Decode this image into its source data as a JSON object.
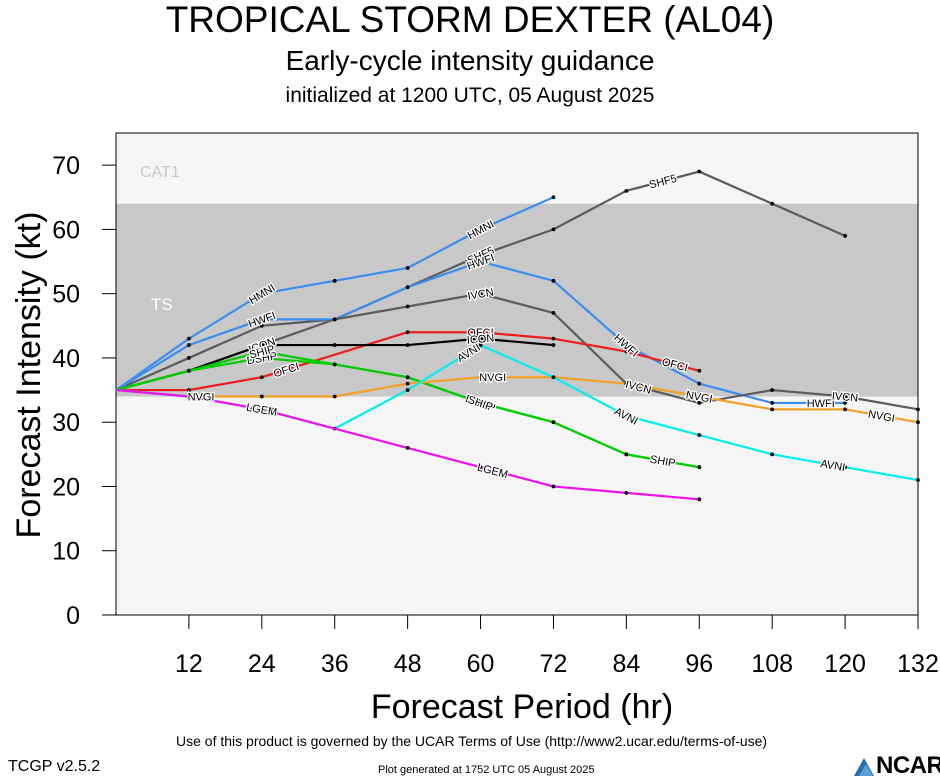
{
  "titles": {
    "main": "TROPICAL STORM DEXTER (AL04)",
    "subtitle": "Early-cycle intensity guidance",
    "init": "initialized at 1200 UTC, 05 August 2025"
  },
  "footer": {
    "terms": "Use of this product is governed by the UCAR Terms of Use (http://www2.ucar.edu/terms-of-use)",
    "version": "TCGP v2.5.2",
    "generated": "Plot generated at 1752 UTC   05 August 2025",
    "logo": "NCAR"
  },
  "chart_data": {
    "type": "line",
    "xlabel": "Forecast Period (hr)",
    "ylabel": "Forecast Intensity (kt)",
    "xlim": [
      0,
      132
    ],
    "ylim": [
      0,
      75
    ],
    "xticks": [
      12,
      24,
      36,
      48,
      60,
      72,
      84,
      96,
      108,
      120,
      132
    ],
    "yticks": [
      0,
      10,
      20,
      30,
      40,
      50,
      60,
      70
    ],
    "bands": [
      {
        "label": "CAT1",
        "from": 64,
        "to": 75,
        "color": "#f5f5f5"
      },
      {
        "label": "TS",
        "from": 34,
        "to": 64,
        "color": "#c8c8c8"
      },
      {
        "label": "",
        "from": 0,
        "to": 34,
        "color": "#f5f5f5"
      }
    ],
    "series": [
      {
        "name": "HMNI",
        "color": "#3a8ef0",
        "x": [
          0,
          12,
          24,
          36,
          48,
          60,
          72
        ],
        "y": [
          35,
          43,
          50,
          52,
          54,
          60,
          65
        ],
        "labels_at": [
          24,
          60
        ]
      },
      {
        "name": "SHF5",
        "color": "#5c5c5c",
        "x": [
          0,
          12,
          24,
          36,
          48,
          60,
          72,
          84,
          96,
          108,
          120
        ],
        "y": [
          35,
          40,
          45,
          46,
          51,
          56,
          60,
          66,
          69,
          64,
          59
        ],
        "labels_at": [
          60,
          90
        ]
      },
      {
        "name": "HWFI",
        "color": "#3a8ef0",
        "x": [
          0,
          12,
          24,
          36,
          48,
          60,
          72,
          84,
          96,
          108,
          120
        ],
        "y": [
          35,
          42,
          46,
          46,
          51,
          55,
          52,
          42,
          36,
          33,
          33
        ],
        "labels_at": [
          24,
          60,
          84,
          116
        ]
      },
      {
        "name": "IVCN",
        "color": "#5c5c5c",
        "x": [
          0,
          12,
          24,
          36,
          48,
          60,
          72,
          84,
          96,
          108,
          120,
          132
        ],
        "y": [
          35,
          38,
          42,
          46,
          48,
          50,
          47,
          36,
          33,
          35,
          34,
          32
        ],
        "labels_at": [
          24,
          60,
          86,
          120
        ]
      },
      {
        "name": "OFCI",
        "color": "#ee1c1c",
        "x": [
          0,
          12,
          24,
          48,
          60,
          72,
          84,
          96
        ],
        "y": [
          35,
          35,
          37,
          44,
          44,
          43,
          41,
          38
        ],
        "labels_at": [
          28,
          60,
          92
        ]
      },
      {
        "name": "ICON",
        "color": "#000000",
        "x": [
          0,
          12,
          24,
          36,
          48,
          60,
          72
        ],
        "y": [
          35,
          38,
          42,
          42,
          42,
          43,
          42
        ],
        "labels_at": [
          24,
          60
        ]
      },
      {
        "name": "DSHP",
        "color": "#00cc00",
        "x": [
          0,
          12,
          24,
          36,
          48,
          60,
          72,
          84,
          96
        ],
        "y": [
          35,
          38,
          40,
          39,
          37,
          33,
          30,
          25,
          23
        ],
        "labels_at": [
          24,
          60
        ]
      },
      {
        "name": "SHIP",
        "color": "#00cc00",
        "x": [
          0,
          12,
          24,
          36,
          48,
          60,
          72,
          84,
          96
        ],
        "y": [
          35,
          38,
          41,
          39,
          37,
          33,
          30,
          25,
          23
        ],
        "labels_at": [
          24,
          60,
          90
        ]
      },
      {
        "name": "NVGI",
        "color": "#f4a020",
        "x": [
          0,
          12,
          24,
          36,
          48,
          60,
          72,
          84,
          96,
          108,
          120,
          132
        ],
        "y": [
          35,
          34,
          34,
          34,
          36,
          37,
          37,
          36,
          34,
          32,
          32,
          30
        ],
        "labels_at": [
          14,
          62,
          96,
          126
        ]
      },
      {
        "name": "AVNI",
        "color": "#00eeee",
        "x": [
          0,
          12,
          24,
          36,
          48,
          60,
          72,
          84,
          96,
          108,
          120,
          132
        ],
        "y": [
          35,
          34,
          32,
          29,
          35,
          42,
          37,
          31,
          28,
          25,
          23,
          21
        ],
        "labels_at": [
          24,
          58,
          84,
          118
        ]
      },
      {
        "name": "LGEM",
        "color": "#ee11ee",
        "x": [
          0,
          12,
          24,
          48,
          60,
          72,
          84,
          96
        ],
        "y": [
          35,
          34,
          32,
          26,
          23,
          20,
          19,
          18
        ],
        "labels_at": [
          24,
          62
        ]
      }
    ]
  }
}
